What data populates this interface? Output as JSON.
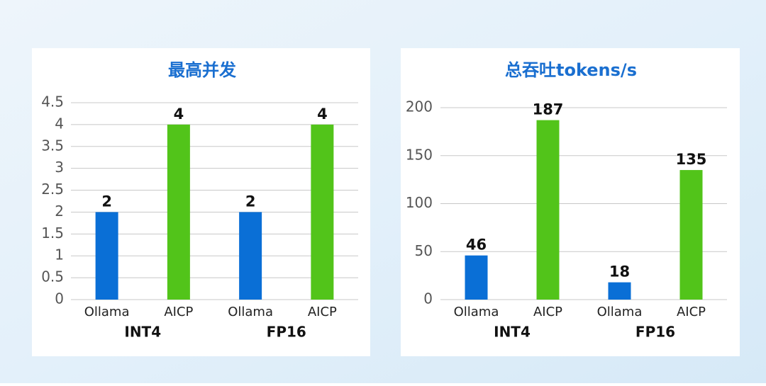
{
  "chart_data": [
    {
      "type": "bar",
      "title": "最高并发",
      "categories": [
        "Ollama",
        "AICP",
        "Ollama",
        "AICP"
      ],
      "groups": [
        "INT4",
        "FP16"
      ],
      "values": [
        2,
        4,
        2,
        4
      ],
      "colors": [
        "#0a6fd6",
        "#52c41a",
        "#0a6fd6",
        "#52c41a"
      ],
      "ylim": [
        0,
        4.5
      ],
      "yticks": [
        0,
        0.5,
        1,
        1.5,
        2,
        2.5,
        3,
        3.5,
        4,
        4.5
      ],
      "grid": true
    },
    {
      "type": "bar",
      "title": "总吞吐tokens/s",
      "categories": [
        "Ollama",
        "AICP",
        "Ollama",
        "AICP"
      ],
      "groups": [
        "INT4",
        "FP16"
      ],
      "values": [
        46,
        187,
        18,
        135
      ],
      "colors": [
        "#0a6fd6",
        "#52c41a",
        "#0a6fd6",
        "#52c41a"
      ],
      "ylim": [
        0,
        200
      ],
      "yticks": [
        0,
        50,
        100,
        150,
        200
      ],
      "grid": true
    }
  ]
}
